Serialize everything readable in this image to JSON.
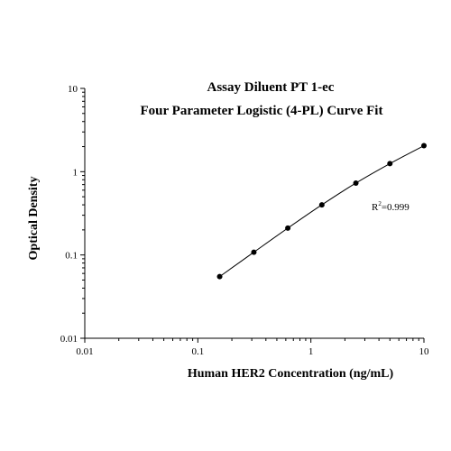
{
  "chart_data": {
    "type": "scatter",
    "title": "Assay Diluent PT 1-ec",
    "subtitle": "Four Parameter Logistic (4-PL) Curve Fit",
    "xlabel": "Human HER2 Concentration (ng/mL)",
    "ylabel": "Optical Density",
    "xscale": "log",
    "yscale": "log",
    "xlim": [
      0.01,
      10
    ],
    "ylim": [
      0.01,
      10
    ],
    "xticks": [
      "0.01",
      "0.1",
      "1",
      "10"
    ],
    "yticks": [
      "0.01",
      "0.1",
      "1",
      "10"
    ],
    "grid": false,
    "legend": "none",
    "annotation": {
      "prefix": "R",
      "superscript": "2",
      "suffix": "=0.999"
    },
    "series": [
      {
        "points": [
          {
            "x": 0.156,
            "y": 0.055
          },
          {
            "x": 0.313,
            "y": 0.108
          },
          {
            "x": 0.625,
            "y": 0.21
          },
          {
            "x": 1.25,
            "y": 0.4
          },
          {
            "x": 2.5,
            "y": 0.73
          },
          {
            "x": 5,
            "y": 1.25
          },
          {
            "x": 10,
            "y": 2.05
          }
        ]
      }
    ],
    "colors": {
      "marker": "#000000",
      "line": "#000000",
      "axis": "#000000"
    }
  }
}
